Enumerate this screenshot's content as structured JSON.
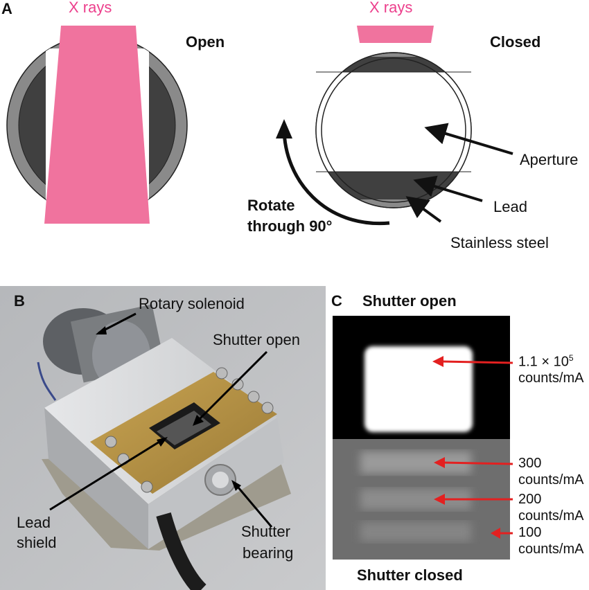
{
  "panel_a": {
    "letter": "A",
    "xrays_left": "X rays",
    "xrays_right": "X rays",
    "open_label": "Open",
    "closed_label": "Closed",
    "rotate_line1": "Rotate",
    "rotate_line2": "through 90°",
    "aperture": "Aperture",
    "lead": "Lead",
    "steel": "Stainless steel"
  },
  "panel_b": {
    "letter": "B",
    "rotary_solenoid": "Rotary solenoid",
    "shutter_open": "Shutter open",
    "lead_line1": "Lead",
    "lead_line2": "shield",
    "bearing_line1": "Shutter",
    "bearing_line2": "bearing"
  },
  "panel_c": {
    "letter": "C",
    "title_open": "Shutter open",
    "title_closed": "Shutter closed",
    "val1_num": "1.1 × 10",
    "val1_exp": "5",
    "val1_unit": "counts/mA",
    "val2_num": "300",
    "val2_unit": "counts/mA",
    "val3_num": "200",
    "val3_unit": "counts/mA",
    "val4_num": "100",
    "val4_unit": "counts/mA"
  },
  "colors": {
    "xray_pink": "#f0739e",
    "steel_gray": "#8a8a8a",
    "lead_dark": "#404040",
    "arrow_red": "#e32020"
  }
}
